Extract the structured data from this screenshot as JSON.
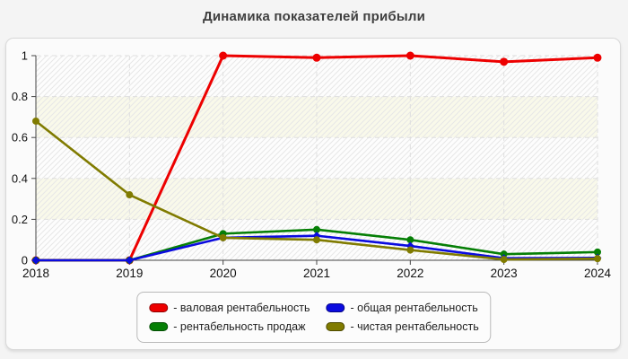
{
  "title": "Динамика показателей прибыли",
  "chart_data": {
    "type": "line",
    "title": "Динамика показателей прибыли",
    "x": [
      2018,
      2019,
      2020,
      2021,
      2022,
      2023,
      2024
    ],
    "series": [
      {
        "name": "валовая рентабельность",
        "legend_label": "- валовая рентабельность",
        "color": "#ed0000",
        "marker": "circle",
        "marker_size": 4.5,
        "line_width": 3,
        "values": [
          0,
          0,
          1,
          0.99,
          1,
          0.97,
          0.99
        ]
      },
      {
        "name": "рентабельность продаж",
        "legend_label": "- рентабельность продаж",
        "color": "#067f06",
        "marker": "circle",
        "marker_size": 4,
        "line_width": 2.6,
        "values": [
          0,
          0,
          0.13,
          0.15,
          0.1,
          0.03,
          0.04
        ]
      },
      {
        "name": "общая рентабельность",
        "legend_label": "- общая рентабельность",
        "color": "#0b0bdf",
        "marker": "diamond",
        "marker_size": 4.5,
        "line_width": 2.6,
        "values": [
          0,
          0,
          0.11,
          0.12,
          0.07,
          0.01,
          0.012
        ]
      },
      {
        "name": "чистая рентабельность",
        "legend_label": "- чистая рентабельность",
        "color": "#807b00",
        "marker": "circle",
        "marker_size": 4,
        "line_width": 2.6,
        "values": [
          0.68,
          0.32,
          0.11,
          0.1,
          0.05,
          0.004,
          0.008
        ]
      }
    ],
    "xlabel": "",
    "ylabel": "",
    "ylim": [
      0,
      1
    ],
    "yticks": [
      0,
      0.2,
      0.4,
      0.6,
      0.8,
      1
    ],
    "ytick_labels": [
      "0",
      "0.2",
      "0.4",
      "0.6",
      "0.8",
      "1"
    ],
    "grid": true,
    "grid_style": "dashed",
    "legend_position": "bottom",
    "band_colors": [
      "#fdfdfd",
      "#f9f9ea"
    ],
    "hatch_color": "#e7e7e7",
    "grid_color": "#dedede",
    "axis_color": "#444444",
    "tick_label_color": "#111111"
  }
}
